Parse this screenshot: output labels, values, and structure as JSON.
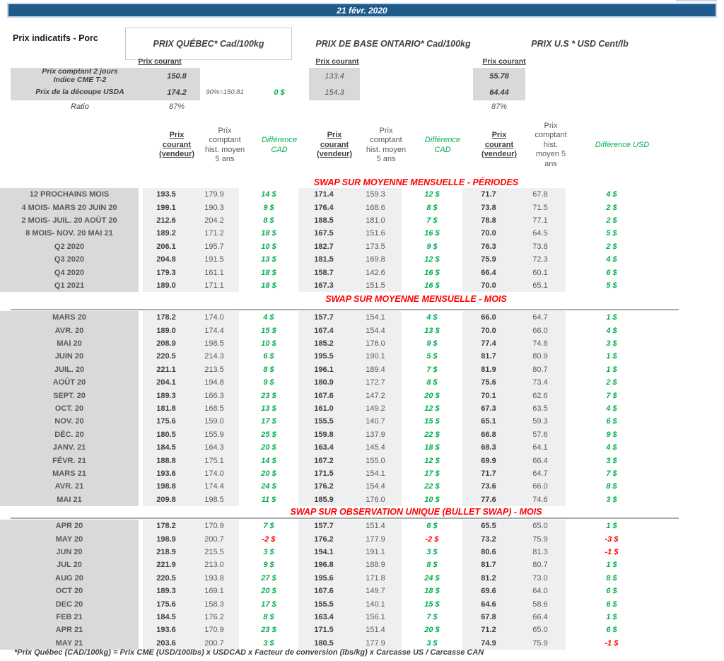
{
  "header": {
    "date": "21 févr. 2020",
    "title": "Prix indicatifs - Porc",
    "quebec": "PRIX QUÉBEC* Cad/100kg",
    "ontario": "PRIX DE BASE ONTARIO* Cad/100kg",
    "us": "PRIX U.S * USD Cent/lb",
    "prix_courant": "Prix courant"
  },
  "spot": {
    "row1": {
      "label": "Prix comptant 2 jours\nIndice CME T-2",
      "qc": "150.8",
      "on": "133.4",
      "us": "55.78"
    },
    "row2": {
      "label": "Prix de la découpe USDA",
      "qc": "174.2",
      "note": "90%=150.81",
      "diff": "0 $",
      "on": "154.3",
      "us": "64.44"
    },
    "row3": {
      "label": "Ratio",
      "qc": "87%",
      "us": "87%"
    }
  },
  "col_headers": {
    "courant": "Prix\ncourant\n(vendeur)",
    "hist_cad": "Prix\ncomptant\nhist. moyen\n5 ans",
    "diff_cad": "Différence\nCAD",
    "hist_usd": "Prix\ncomptant\nhist.\nmoyen 5\nans",
    "diff_usd": "Différence USD"
  },
  "tables": [
    {
      "banner": "SWAP SUR MOYENNE MENSUELLE - PÉRIODES",
      "rows": [
        [
          "12 PROCHAINS MOIS",
          "193.5",
          "179.9",
          "14 $",
          "171.4",
          "159.3",
          "12 $",
          "71.7",
          "67.8",
          "4 $"
        ],
        [
          "4 MOIS- MARS 20 JUIN 20",
          "199.1",
          "190.3",
          "9 $",
          "176.4",
          "168.6",
          "8 $",
          "73.8",
          "71.5",
          "2 $"
        ],
        [
          "2 MOIS- JUIL. 20 AOÛT 20",
          "212.6",
          "204.2",
          "8 $",
          "188.5",
          "181.0",
          "7 $",
          "78.8",
          "77.1",
          "2 $"
        ],
        [
          "8 MOIS- NOV. 20 MAI 21",
          "189.2",
          "171.2",
          "18 $",
          "167.5",
          "151.6",
          "16 $",
          "70.0",
          "64.5",
          "5 $"
        ],
        [
          "Q2 2020",
          "206.1",
          "195.7",
          "10 $",
          "182.7",
          "173.5",
          "9 $",
          "76.3",
          "73.8",
          "2 $"
        ],
        [
          "Q3 2020",
          "204.8",
          "191.5",
          "13 $",
          "181.5",
          "169.8",
          "12 $",
          "75.9",
          "72.3",
          "4 $"
        ],
        [
          "Q4 2020",
          "179.3",
          "161.1",
          "18 $",
          "158.7",
          "142.6",
          "16 $",
          "66.4",
          "60.1",
          "6 $"
        ],
        [
          "Q1 2021",
          "189.0",
          "171.1",
          "18 $",
          "167.3",
          "151.5",
          "16 $",
          "70.0",
          "65.1",
          "5 $"
        ]
      ]
    },
    {
      "banner": "SWAP SUR MOYENNE MENSUELLE - MOIS",
      "rows": [
        [
          "MARS 20",
          "178.2",
          "174.0",
          "4 $",
          "157.7",
          "154.1",
          "4 $",
          "66.0",
          "64.7",
          "1 $"
        ],
        [
          "AVR. 20",
          "189.0",
          "174.4",
          "15 $",
          "167.4",
          "154.4",
          "13 $",
          "70.0",
          "66.0",
          "4 $"
        ],
        [
          "MAI 20",
          "208.9",
          "198.5",
          "10 $",
          "185.2",
          "176.0",
          "9 $",
          "77.4",
          "74.6",
          "3 $"
        ],
        [
          "JUIN 20",
          "220.5",
          "214.3",
          "6 $",
          "195.5",
          "190.1",
          "5 $",
          "81.7",
          "80.9",
          "1 $"
        ],
        [
          "JUIL. 20",
          "221.1",
          "213.5",
          "8 $",
          "196.1",
          "189.4",
          "7 $",
          "81.9",
          "80.7",
          "1 $"
        ],
        [
          "AOÛT 20",
          "204.1",
          "194.8",
          "9 $",
          "180.9",
          "172.7",
          "8 $",
          "75.6",
          "73.4",
          "2 $"
        ],
        [
          "SEPT. 20",
          "189.3",
          "166.3",
          "23 $",
          "167.6",
          "147.2",
          "20 $",
          "70.1",
          "62.6",
          "7 $"
        ],
        [
          "OCT. 20",
          "181.8",
          "168.5",
          "13 $",
          "161.0",
          "149.2",
          "12 $",
          "67.3",
          "63.5",
          "4 $"
        ],
        [
          "NOV. 20",
          "175.6",
          "159.0",
          "17 $",
          "155.5",
          "140.7",
          "15 $",
          "65.1",
          "59.3",
          "6 $"
        ],
        [
          "DÉC. 20",
          "180.5",
          "155.9",
          "25 $",
          "159.8",
          "137.9",
          "22 $",
          "66.8",
          "57.6",
          "9 $"
        ],
        [
          "JANV. 21",
          "184.5",
          "164.3",
          "20 $",
          "163.4",
          "145.4",
          "18 $",
          "68.3",
          "64.1",
          "4 $"
        ],
        [
          "FÉVR. 21",
          "188.8",
          "175.1",
          "14 $",
          "167.2",
          "155.0",
          "12 $",
          "69.9",
          "66.4",
          "3 $"
        ],
        [
          "MARS 21",
          "193.6",
          "174.0",
          "20 $",
          "171.5",
          "154.1",
          "17 $",
          "71.7",
          "64.7",
          "7 $"
        ],
        [
          "AVR. 21",
          "198.8",
          "174.4",
          "24 $",
          "176.2",
          "154.4",
          "22 $",
          "73.6",
          "66.0",
          "8 $"
        ],
        [
          "MAI 21",
          "209.8",
          "198.5",
          "11 $",
          "185.9",
          "176.0",
          "10 $",
          "77.6",
          "74.6",
          "3 $"
        ]
      ]
    },
    {
      "banner": "SWAP SUR OBSERVATION UNIQUE (BULLET SWAP) - MOIS",
      "rows": [
        [
          "APR 20",
          "178.2",
          "170.9",
          "7 $",
          "157.7",
          "151.4",
          "6 $",
          "65.5",
          "65.0",
          "1 $"
        ],
        [
          "MAY 20",
          "198.9",
          "200.7",
          "-2 $",
          "176.2",
          "177.9",
          "-2 $",
          "73.2",
          "75.9",
          "-3 $"
        ],
        [
          "JUN 20",
          "218.9",
          "215.5",
          "3 $",
          "194.1",
          "191.1",
          "3 $",
          "80.6",
          "81.3",
          "-1 $"
        ],
        [
          "JUL 20",
          "221.9",
          "213.0",
          "9 $",
          "196.8",
          "188.9",
          "8 $",
          "81.7",
          "80.7",
          "1 $"
        ],
        [
          "AUG 20",
          "220.5",
          "193.8",
          "27 $",
          "195.6",
          "171.8",
          "24 $",
          "81.2",
          "73.0",
          "8 $"
        ],
        [
          "OCT 20",
          "189.3",
          "169.1",
          "20 $",
          "167.6",
          "149.7",
          "18 $",
          "69.6",
          "64.0",
          "6 $"
        ],
        [
          "DEC 20",
          "175.6",
          "158.3",
          "17 $",
          "155.5",
          "140.1",
          "15 $",
          "64.6",
          "58.6",
          "6 $"
        ],
        [
          "FEB 21",
          "184.5",
          "176.2",
          "8 $",
          "163.4",
          "156.1",
          "7 $",
          "67.8",
          "66.4",
          "1 $"
        ],
        [
          "APR 21",
          "193.6",
          "170.9",
          "23 $",
          "171.5",
          "151.4",
          "20 $",
          "71.2",
          "65.0",
          "6 $"
        ],
        [
          "MAY 21",
          "203.6",
          "200.7",
          "3 $",
          "180.5",
          "177.9",
          "3 $",
          "74.9",
          "75.9",
          "-1 $"
        ]
      ]
    }
  ],
  "footer": "*Prix Québec (CAD/100kg) = Prix CME (USD/100lbs) x USDCAD x Facteur de conversion (lbs/kg) x Carcasse US / Carcasse CAN",
  "colors": {
    "accent_blue": "#1f5c8c",
    "positive_green": "#00b050",
    "negative_red": "#ff0000",
    "banner_red": "#ff0000",
    "label_gray": "#d9d9d9",
    "band_gray": "#efefef"
  }
}
